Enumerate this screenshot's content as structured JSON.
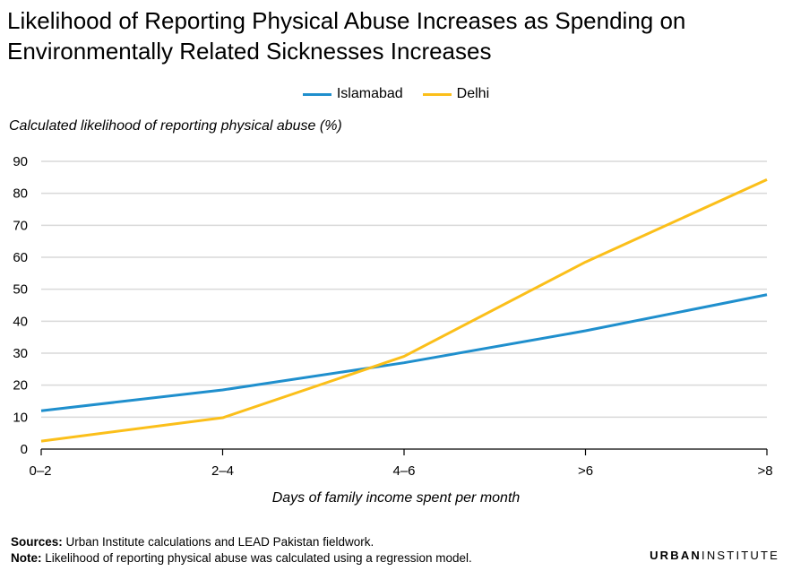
{
  "title": "Likelihood of Reporting Physical Abuse Increases as Spending on Environmentally Related Sicknesses Increases",
  "legend": [
    {
      "label": "Islamabad",
      "color": "#1f8fcd"
    },
    {
      "label": "Delhi",
      "color": "#fbbf1a"
    }
  ],
  "chart_data": {
    "type": "line",
    "title": "Likelihood of Reporting Physical Abuse Increases as Spending on Environmentally Related Sicknesses Increases",
    "ylabel": "Calculated likelihood of reporting physical abuse (%)",
    "xlabel": "Days of family income spent per month",
    "categories": [
      "0–2",
      "2–4",
      "4–6",
      ">6",
      ">8"
    ],
    "ylim": [
      0,
      90
    ],
    "yticks": [
      0,
      10,
      20,
      30,
      40,
      50,
      60,
      70,
      80,
      90
    ],
    "grid": true,
    "legend_position": "top-center",
    "series": [
      {
        "name": "Islamabad",
        "color": "#1f8fcd",
        "values": [
          12,
          18.5,
          27,
          37,
          48.3
        ]
      },
      {
        "name": "Delhi",
        "color": "#fbbf1a",
        "values": [
          2.5,
          9.8,
          29,
          58.5,
          84.3
        ]
      }
    ]
  },
  "footer": {
    "sources_label": "Sources:",
    "sources_text": " Urban Institute calculations and LEAD Pakistan fieldwork.",
    "note_label": "Note:",
    "note_text": " Likelihood of reporting physical abuse was calculated using a regression model."
  },
  "logo": {
    "part1": "URBAN",
    "part2": "INSTITUTE"
  }
}
